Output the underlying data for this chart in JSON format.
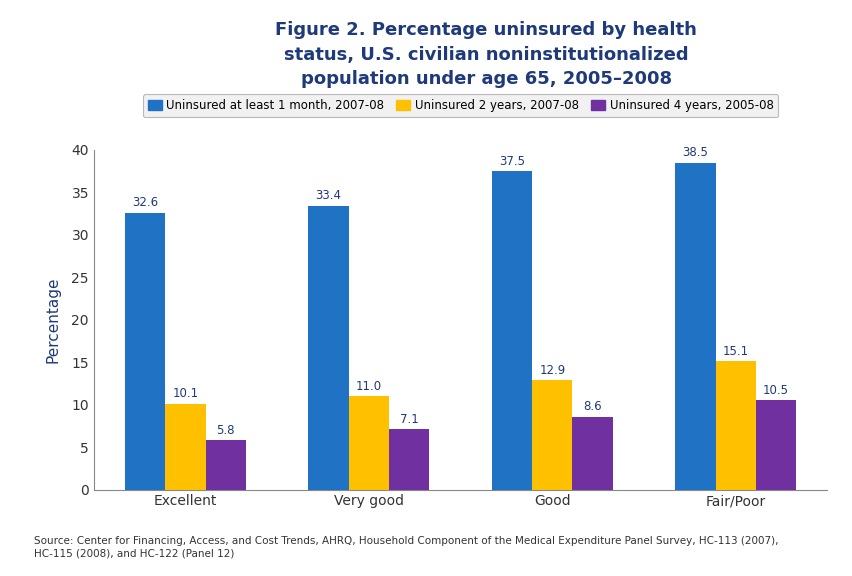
{
  "categories": [
    "Excellent",
    "Very good",
    "Good",
    "Fair/Poor"
  ],
  "series": [
    {
      "label": "Uninsured at least 1 month, 2007-08",
      "color": "#1F72C4",
      "values": [
        32.6,
        33.4,
        37.5,
        38.5
      ]
    },
    {
      "label": "Uninsured 2 years, 2007-08",
      "color": "#FFC000",
      "values": [
        10.1,
        11.0,
        12.9,
        15.1
      ]
    },
    {
      "label": "Uninsured 4 years, 2005-08",
      "color": "#7030A0",
      "values": [
        5.8,
        7.1,
        8.6,
        10.5
      ]
    }
  ],
  "ylabel": "Percentage",
  "ylim": [
    0,
    40
  ],
  "yticks": [
    0,
    5,
    10,
    15,
    20,
    25,
    30,
    35,
    40
  ],
  "title_line1": "Figure 2. Percentage uninsured by health",
  "title_line2": "status, U.S. civilian noninstitutionalized",
  "title_line3": "population under age 65, 2005–2008",
  "title_color": "#1F3A7A",
  "source_text": "Source: Center for Financing, Access, and Cost Trends, AHRQ, Household Component of the Medical Expenditure Panel Survey, HC-113 (2007),\nHC-115 (2008), and HC-122 (Panel 12)",
  "bar_width": 0.22,
  "background_color": "#FFFFFF",
  "header_line_color": "#1F3A7A",
  "axis_label_color": "#1F3A7A",
  "tick_label_color": "#333333",
  "value_label_color": "#1F3A7A"
}
